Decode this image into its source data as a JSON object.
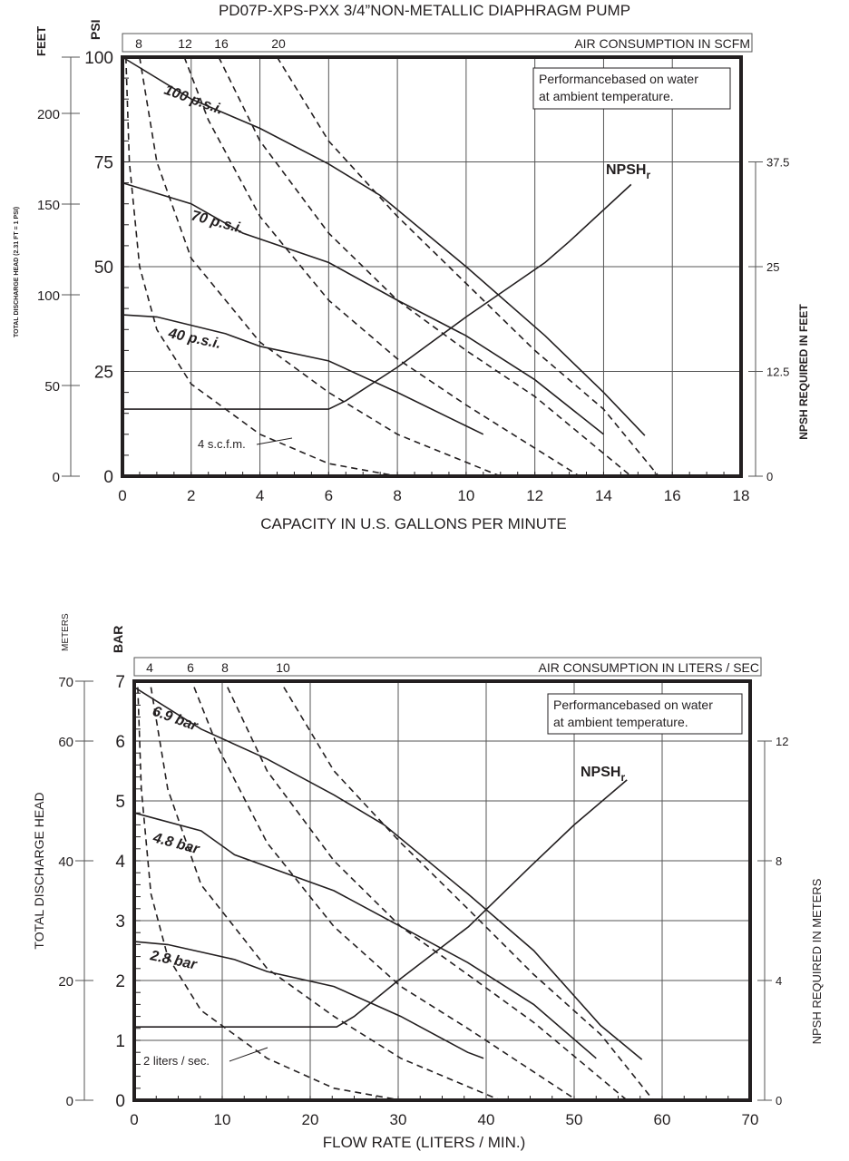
{
  "title": "PD07P-XPS-PXX 3/4”NON-METALLIC DIAPHRAGM PUMP",
  "colors": {
    "ink": "#231f20",
    "grid": "#555555"
  },
  "chart_data": [
    {
      "type": "line",
      "xlabel": "CAPACITY IN U.S. GALLONS PER MINUTE",
      "ylabel": "PSI",
      "y_outer_label": "FEET",
      "y_outer_title": "TOTAL DISCHARGE HEAD (2.31 FT = 1 PSI)",
      "y2label": "NPSH REQUIRED IN FEET",
      "xlim": [
        0,
        18
      ],
      "ylim": [
        0,
        100
      ],
      "x_ticks": [
        "0",
        "2",
        "4",
        "6",
        "8",
        "10",
        "12",
        "14",
        "16",
        "18"
      ],
      "y_ticks": [
        "0",
        "25",
        "50",
        "75",
        "100"
      ],
      "y_outer_ticks": [
        "0",
        "50",
        "100",
        "150",
        "200"
      ],
      "y2_ticks": [
        "0",
        "12.5",
        "25",
        "37.5"
      ],
      "air_band": {
        "label": "AIR CONSUMPTION IN SCFM",
        "ticks": [
          "8",
          "12",
          "16",
          "20"
        ]
      },
      "note": [
        "Performancebased on water",
        "at ambient temperature."
      ],
      "grid": true,
      "series": [
        {
          "name": "100 p.s.i.",
          "style": "solid",
          "points": [
            [
              0,
              100
            ],
            [
              2,
              90
            ],
            [
              4,
              83
            ],
            [
              6,
              74.5
            ],
            [
              7.5,
              67
            ],
            [
              10,
              50
            ],
            [
              12.3,
              33.5
            ],
            [
              14,
              20
            ],
            [
              15.2,
              9.7
            ]
          ]
        },
        {
          "name": "70 p.s.i.",
          "style": "solid",
          "points": [
            [
              0,
              70
            ],
            [
              2,
              65
            ],
            [
              3.5,
              58
            ],
            [
              6,
              51
            ],
            [
              8,
              42
            ],
            [
              10,
              33.5
            ],
            [
              12,
              23
            ],
            [
              14,
              10
            ]
          ]
        },
        {
          "name": "40 p.s.i.",
          "style": "solid",
          "points": [
            [
              0,
              38.5
            ],
            [
              1,
              38
            ],
            [
              3,
              34
            ],
            [
              4,
              31
            ],
            [
              6,
              27.5
            ],
            [
              8,
              20
            ],
            [
              10,
              12
            ],
            [
              10.5,
              10
            ]
          ]
        },
        {
          "name": "NPSHr",
          "label_main": "NPSH",
          "label_sub": "r",
          "style": "solid",
          "axis": "y2",
          "points": [
            [
              0,
              8
            ],
            [
              6,
              8
            ],
            [
              6.5,
              9
            ],
            [
              8,
              13
            ],
            [
              10,
              19
            ],
            [
              12.3,
              25.5
            ],
            [
              13,
              28
            ],
            [
              14.8,
              34.8
            ]
          ]
        },
        {
          "name": "4 s.c.f.m.",
          "style": "dashed",
          "points": [
            [
              0.1,
              100
            ],
            [
              0.2,
              75
            ],
            [
              0.5,
              50
            ],
            [
              1,
              35
            ],
            [
              2,
              22
            ],
            [
              4,
              10
            ],
            [
              6,
              3
            ],
            [
              8,
              0
            ]
          ]
        },
        {
          "name": "8",
          "style": "dashed",
          "points": [
            [
              0.5,
              100
            ],
            [
              1,
              75
            ],
            [
              2,
              52
            ],
            [
              4,
              32
            ],
            [
              6,
              20
            ],
            [
              8,
              10
            ],
            [
              11,
              0
            ]
          ]
        },
        {
          "name": "12",
          "style": "dashed",
          "points": [
            [
              1.8,
              100
            ],
            [
              2.5,
              85
            ],
            [
              4,
              62
            ],
            [
              6,
              42
            ],
            [
              8,
              28
            ],
            [
              10,
              17
            ],
            [
              13.3,
              0
            ]
          ]
        },
        {
          "name": "16",
          "style": "dashed",
          "points": [
            [
              2.8,
              100
            ],
            [
              4,
              80
            ],
            [
              6,
              58
            ],
            [
              8,
              42
            ],
            [
              10,
              30
            ],
            [
              12,
              19
            ],
            [
              14.8,
              0
            ]
          ]
        },
        {
          "name": "20",
          "style": "dashed",
          "points": [
            [
              4.5,
              100
            ],
            [
              6,
              80
            ],
            [
              8,
              62
            ],
            [
              10,
              46
            ],
            [
              12,
              30
            ],
            [
              14,
              16
            ],
            [
              15.6,
              0
            ]
          ]
        }
      ]
    },
    {
      "type": "line",
      "xlabel": "FLOW RATE (LITERS / MIN.)",
      "ylabel": "BAR",
      "y_outer_label": "METERS",
      "y_outer_title": "TOTAL DISCHARGE HEAD",
      "y2label": "NPSH REQUIRED IN METERS",
      "xlim": [
        0,
        70
      ],
      "ylim": [
        0,
        7
      ],
      "x_ticks": [
        "0",
        "10",
        "20",
        "30",
        "40",
        "50",
        "60",
        "70"
      ],
      "y_ticks": [
        "0",
        "1",
        "2",
        "3",
        "4",
        "5",
        "6",
        "7"
      ],
      "y_outer_ticks": [
        "0",
        "20",
        "40",
        "60",
        "70"
      ],
      "y2_ticks": [
        "0",
        "4",
        "8",
        "12"
      ],
      "air_band": {
        "label": "AIR CONSUMPTION IN LITERS / SEC",
        "ticks": [
          "4",
          "6",
          "8",
          "10"
        ]
      },
      "note": [
        "Performancebased on water",
        "at ambient temperature."
      ],
      "grid": true,
      "series": [
        {
          "name": "6.9 bar",
          "style": "solid",
          "points": [
            [
              0,
              6.9
            ],
            [
              7.6,
              6.2
            ],
            [
              15.1,
              5.7
            ],
            [
              22.7,
              5.1
            ],
            [
              28.4,
              4.6
            ],
            [
              37.9,
              3.45
            ],
            [
              45.4,
              2.5
            ],
            [
              53,
              1.25
            ],
            [
              57.7,
              0.68
            ]
          ]
        },
        {
          "name": "4.8 bar",
          "style": "solid",
          "points": [
            [
              0,
              4.8
            ],
            [
              7.6,
              4.5
            ],
            [
              11.4,
              4.1
            ],
            [
              22.7,
              3.5
            ],
            [
              30.3,
              2.9
            ],
            [
              37.9,
              2.3
            ],
            [
              45.4,
              1.6
            ],
            [
              52.5,
              0.7
            ]
          ]
        },
        {
          "name": "2.8 bar",
          "style": "solid",
          "points": [
            [
              0,
              2.65
            ],
            [
              3.8,
              2.6
            ],
            [
              11.4,
              2.35
            ],
            [
              15.1,
              2.15
            ],
            [
              22.7,
              1.9
            ],
            [
              30.3,
              1.4
            ],
            [
              37.9,
              0.8
            ],
            [
              39.7,
              0.7
            ]
          ]
        },
        {
          "name": "NPSHr",
          "label_main": "NPSH",
          "label_sub": "r",
          "style": "solid",
          "axis": "y2",
          "points": [
            [
              0,
              2.45
            ],
            [
              23,
              2.45
            ],
            [
              25,
              2.8
            ],
            [
              30,
              4
            ],
            [
              38,
              5.8
            ],
            [
              45,
              7.8
            ],
            [
              50,
              9.2
            ],
            [
              56,
              10.7
            ]
          ]
        },
        {
          "name": "2 liters / sec.",
          "style": "dashed",
          "points": [
            [
              0.4,
              6.9
            ],
            [
              0.8,
              5.2
            ],
            [
              1.9,
              3.45
            ],
            [
              3.8,
              2.4
            ],
            [
              7.6,
              1.5
            ],
            [
              15.1,
              0.7
            ],
            [
              22.7,
              0.2
            ],
            [
              30.3,
              0
            ]
          ]
        },
        {
          "name": "4",
          "style": "dashed",
          "points": [
            [
              1.9,
              6.9
            ],
            [
              3.8,
              5.2
            ],
            [
              7.6,
              3.6
            ],
            [
              15.1,
              2.2
            ],
            [
              22.7,
              1.4
            ],
            [
              30.3,
              0.7
            ],
            [
              41.6,
              0
            ]
          ]
        },
        {
          "name": "6",
          "style": "dashed",
          "points": [
            [
              6.8,
              6.9
            ],
            [
              9.5,
              5.9
            ],
            [
              15.1,
              4.3
            ],
            [
              22.7,
              2.9
            ],
            [
              30.3,
              1.9
            ],
            [
              37.9,
              1.2
            ],
            [
              50.3,
              0
            ]
          ]
        },
        {
          "name": "8",
          "style": "dashed",
          "points": [
            [
              10.6,
              6.9
            ],
            [
              15.1,
              5.5
            ],
            [
              22.7,
              4.0
            ],
            [
              30.3,
              2.9
            ],
            [
              37.9,
              2.1
            ],
            [
              45.4,
              1.3
            ],
            [
              56,
              0
            ]
          ]
        },
        {
          "name": "10",
          "style": "dashed",
          "points": [
            [
              17,
              6.9
            ],
            [
              22.7,
              5.5
            ],
            [
              30.3,
              4.3
            ],
            [
              37.9,
              3.2
            ],
            [
              45.4,
              2.1
            ],
            [
              53,
              1.1
            ],
            [
              59,
              0
            ]
          ]
        }
      ]
    }
  ]
}
